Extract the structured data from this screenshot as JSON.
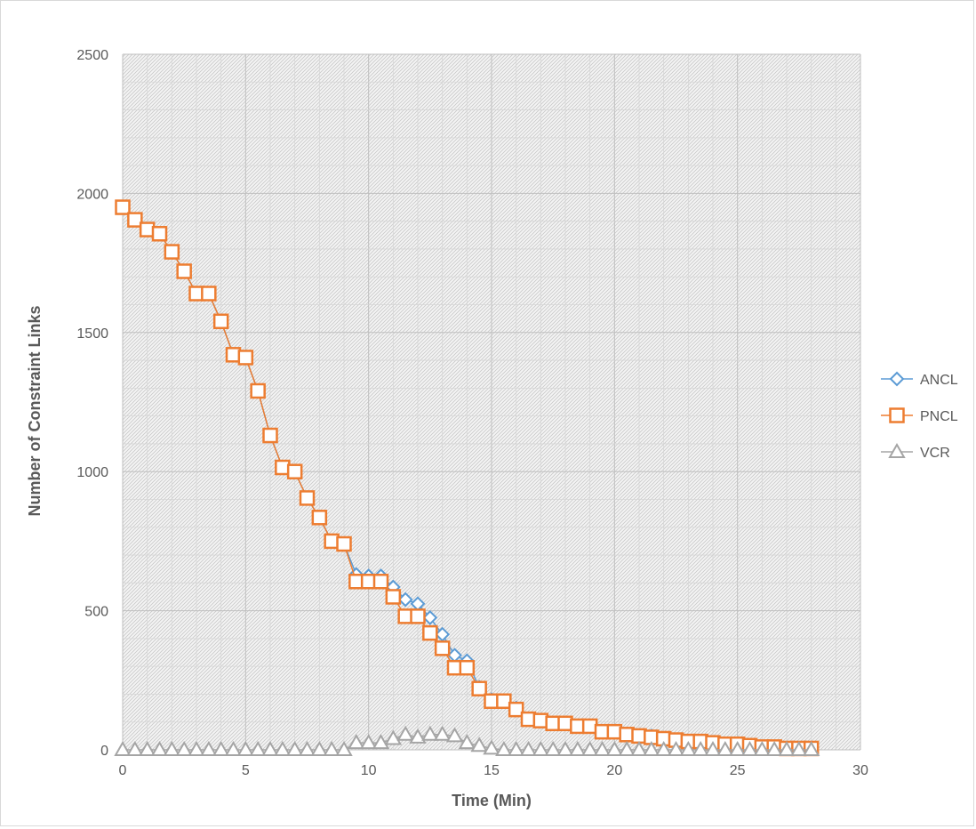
{
  "chart_data": {
    "type": "line",
    "title": "",
    "xlabel": "Time (Min)",
    "ylabel": "Number of Constraint Links",
    "xlim": [
      0,
      30
    ],
    "ylim": [
      0,
      2500
    ],
    "x_ticks": [
      "0",
      "5",
      "10",
      "15",
      "20",
      "25",
      "30"
    ],
    "y_ticks": [
      "0",
      "500",
      "1000",
      "1500",
      "2000",
      "2500"
    ],
    "grid": true,
    "legend_position": "right",
    "series": [
      {
        "name": "ANCL",
        "color": "#5b9bd5",
        "marker": "diamond",
        "x": [
          0,
          0.5,
          1,
          1.5,
          2,
          2.5,
          3,
          3.5,
          4,
          4.5,
          5,
          5.5,
          6,
          6.5,
          7,
          7.5,
          8,
          8.5,
          9,
          9.5,
          10,
          10.5,
          11,
          11.5,
          12,
          12.5,
          13,
          13.5,
          14,
          14.5,
          15,
          15.5,
          16,
          16.5,
          17,
          17.5,
          18,
          18.5,
          19,
          19.5,
          20,
          20.5,
          21,
          21.5,
          22,
          22.5,
          23,
          23.5,
          24,
          24.5,
          25,
          25.5,
          26,
          26.5,
          27,
          27.5,
          28
        ],
        "y": [
          1950,
          1905,
          1870,
          1855,
          1790,
          1720,
          1640,
          1640,
          1540,
          1420,
          1410,
          1290,
          1130,
          1015,
          1000,
          905,
          835,
          750,
          740,
          630,
          625,
          625,
          585,
          540,
          525,
          475,
          415,
          340,
          320,
          225,
          180,
          175,
          150,
          110,
          105,
          95,
          95,
          85,
          85,
          65,
          65,
          55,
          50,
          50,
          40,
          35,
          30,
          30,
          25,
          20,
          20,
          15,
          10,
          10,
          5,
          5,
          5
        ]
      },
      {
        "name": "PNCL",
        "color": "#ed7d31",
        "marker": "square",
        "x": [
          0,
          0.5,
          1,
          1.5,
          2,
          2.5,
          3,
          3.5,
          4,
          4.5,
          5,
          5.5,
          6,
          6.5,
          7,
          7.5,
          8,
          8.5,
          9,
          9.5,
          10,
          10.5,
          11,
          11.5,
          12,
          12.5,
          13,
          13.5,
          14,
          14.5,
          15,
          15.5,
          16,
          16.5,
          17,
          17.5,
          18,
          18.5,
          19,
          19.5,
          20,
          20.5,
          21,
          21.5,
          22,
          22.5,
          23,
          23.5,
          24,
          24.5,
          25,
          25.5,
          26,
          26.5,
          27,
          27.5,
          28
        ],
        "y": [
          1950,
          1905,
          1870,
          1855,
          1790,
          1720,
          1640,
          1640,
          1540,
          1420,
          1410,
          1290,
          1130,
          1015,
          1000,
          905,
          835,
          750,
          740,
          605,
          605,
          605,
          550,
          480,
          480,
          420,
          365,
          295,
          295,
          220,
          175,
          175,
          145,
          110,
          105,
          95,
          95,
          85,
          85,
          65,
          65,
          55,
          50,
          45,
          40,
          35,
          30,
          30,
          25,
          20,
          20,
          15,
          10,
          10,
          5,
          5,
          5
        ]
      },
      {
        "name": "VCR",
        "color": "#a5a5a5",
        "marker": "triangle",
        "x": [
          0,
          0.5,
          1,
          1.5,
          2,
          2.5,
          3,
          3.5,
          4,
          4.5,
          5,
          5.5,
          6,
          6.5,
          7,
          7.5,
          8,
          8.5,
          9,
          9.5,
          10,
          10.5,
          11,
          11.5,
          12,
          12.5,
          13,
          13.5,
          14,
          14.5,
          15,
          15.5,
          16,
          16.5,
          17,
          17.5,
          18,
          18.5,
          19,
          19.5,
          20,
          20.5,
          21,
          21.5,
          22,
          22.5,
          23,
          23.5,
          24,
          24.5,
          25,
          25.5,
          26,
          26.5,
          27,
          27.5,
          28
        ],
        "y": [
          0,
          0,
          0,
          0,
          0,
          0,
          0,
          0,
          0,
          0,
          0,
          0,
          0,
          0,
          0,
          0,
          0,
          0,
          0,
          25,
          25,
          25,
          40,
          55,
          45,
          55,
          55,
          50,
          25,
          15,
          5,
          0,
          0,
          0,
          0,
          0,
          0,
          0,
          0,
          0,
          0,
          0,
          0,
          0,
          0,
          0,
          0,
          0,
          0,
          0,
          0,
          0,
          0,
          0,
          0,
          0,
          0
        ]
      }
    ]
  }
}
